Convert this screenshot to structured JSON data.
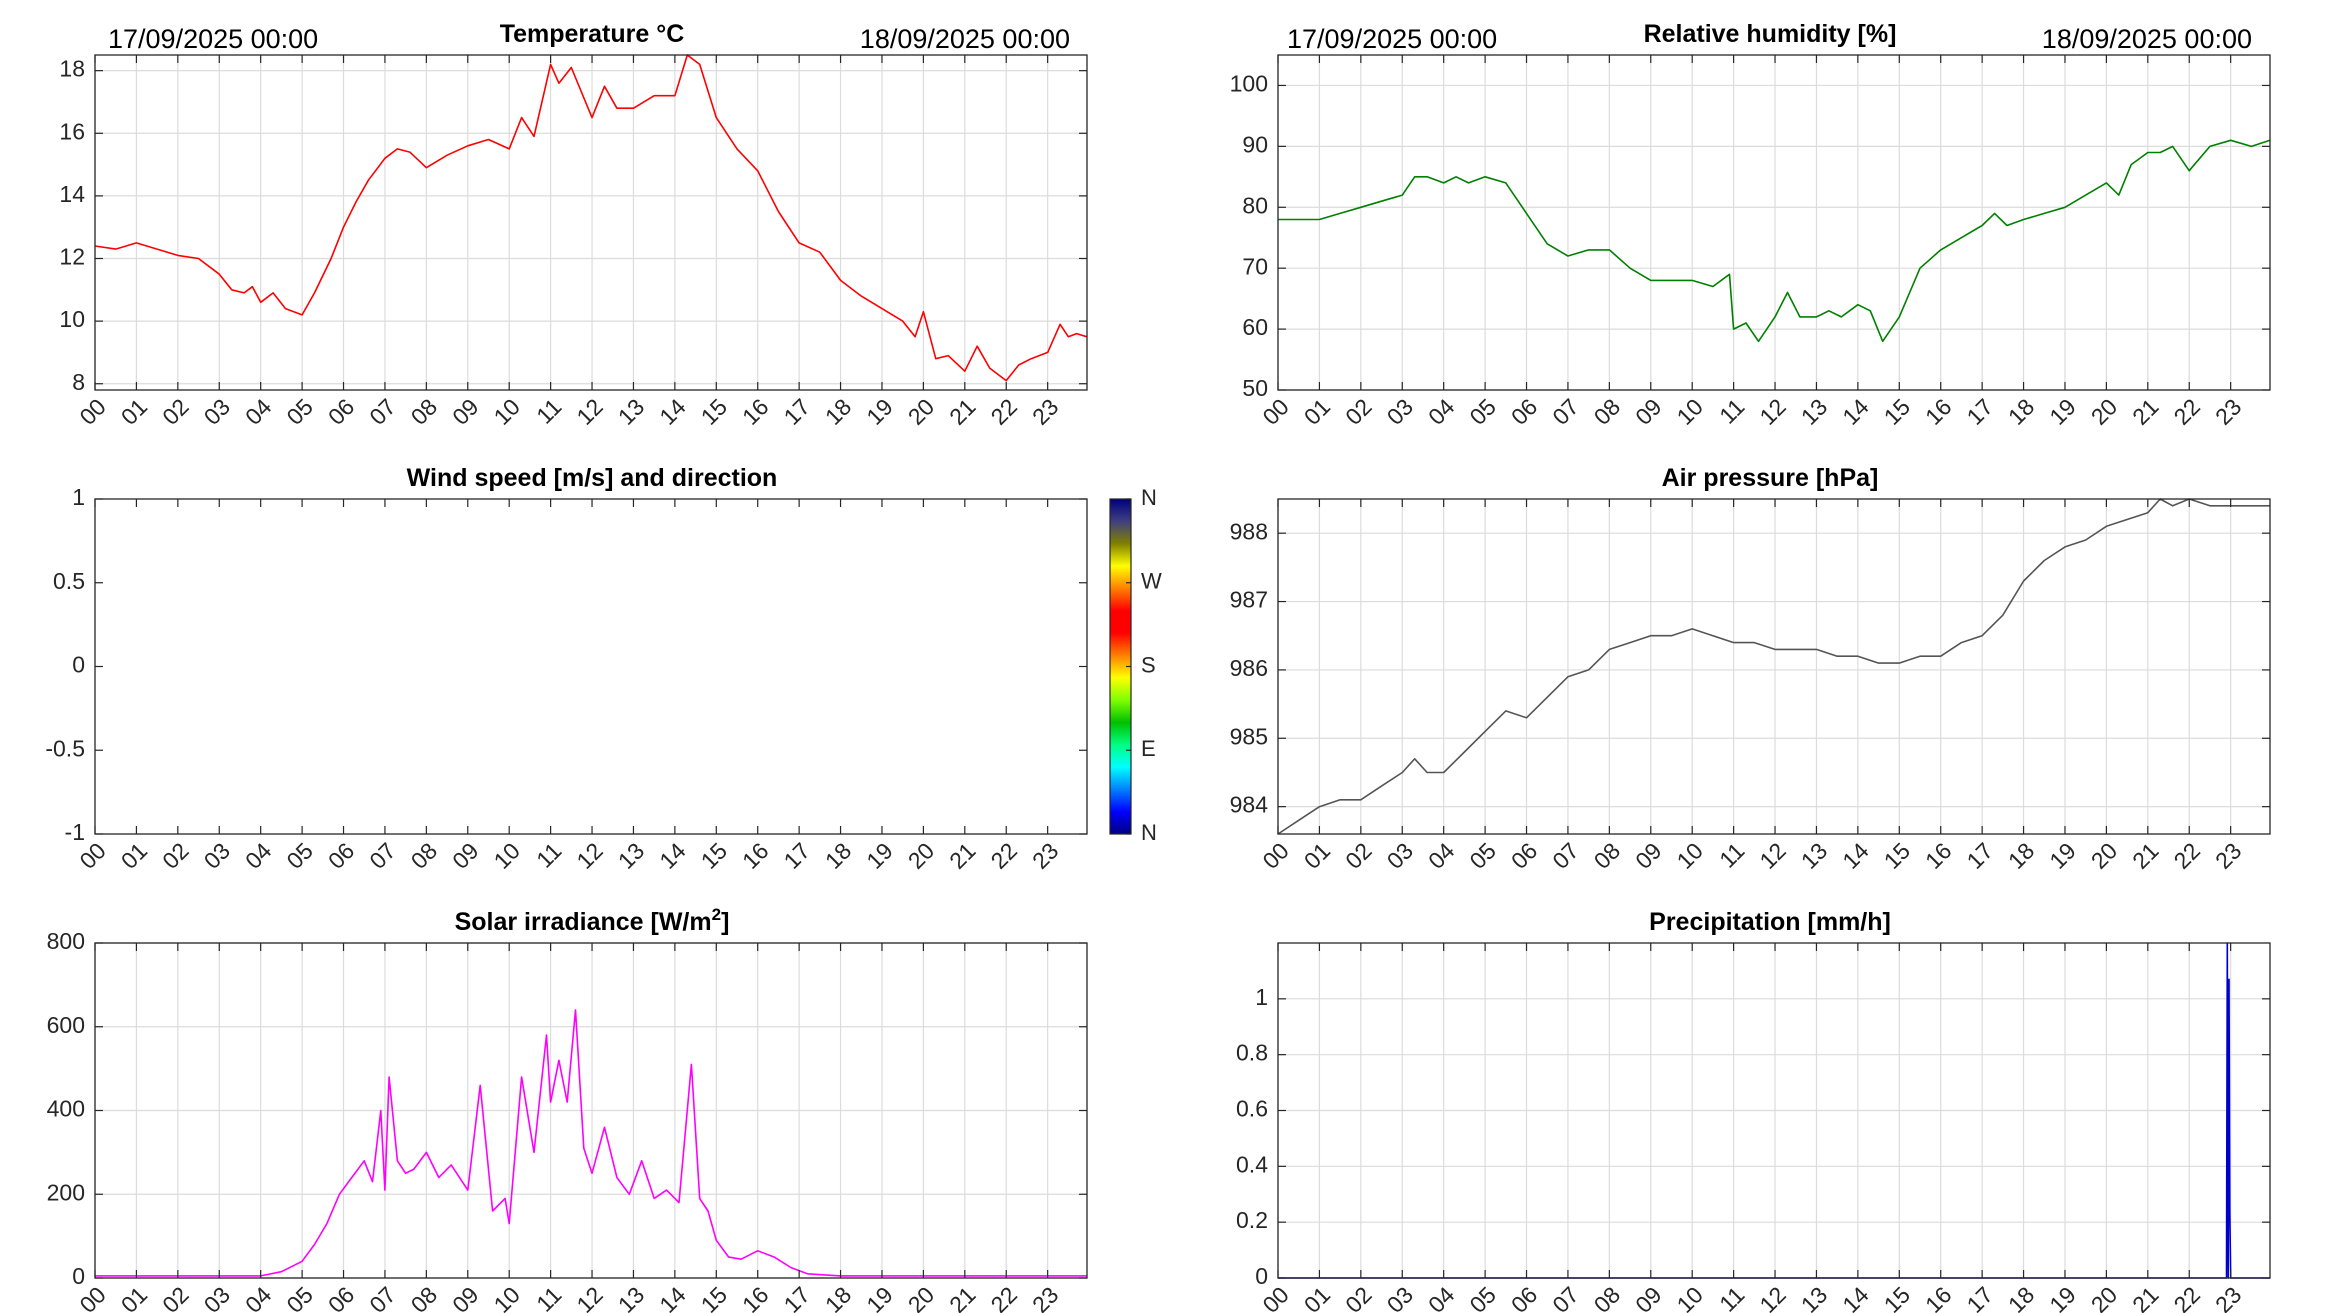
{
  "chart_data": [
    {
      "id": "temperature",
      "type": "line",
      "title": "Temperature °C",
      "date_left": "17/09/2025 00:00",
      "date_right": "18/09/2025 00:00",
      "color": "#ff0000",
      "ylim": [
        7.8,
        18.5
      ],
      "yticks": [
        "8",
        "10",
        "12",
        "14",
        "16",
        "18"
      ],
      "xticks": [
        "00",
        "01",
        "02",
        "03",
        "04",
        "05",
        "06",
        "07",
        "08",
        "09",
        "10",
        "11",
        "12",
        "13",
        "14",
        "15",
        "16",
        "17",
        "18",
        "19",
        "20",
        "21",
        "22",
        "23"
      ],
      "xlim": [
        0,
        23.95
      ],
      "grid": true,
      "x": [
        0,
        0.5,
        1,
        1.5,
        2,
        2.5,
        3,
        3.3,
        3.6,
        3.8,
        4,
        4.3,
        4.6,
        5,
        5.3,
        5.7,
        6,
        6.3,
        6.6,
        7,
        7.3,
        7.6,
        8,
        8.5,
        9,
        9.5,
        10,
        10.3,
        10.6,
        11,
        11.2,
        11.5,
        12,
        12.3,
        12.6,
        13,
        13.5,
        14,
        14.3,
        14.6,
        15,
        15.5,
        16,
        16.5,
        17,
        17.5,
        18,
        18.5,
        19,
        19.5,
        19.8,
        20,
        20.3,
        20.6,
        21,
        21.3,
        21.6,
        22,
        22.3,
        22.6,
        23,
        23.3,
        23.5,
        23.7,
        23.95
      ],
      "y": [
        12.4,
        12.3,
        12.5,
        12.3,
        12.1,
        12.0,
        11.5,
        11.0,
        10.9,
        11.1,
        10.6,
        10.9,
        10.4,
        10.2,
        10.9,
        12.0,
        13.0,
        13.8,
        14.5,
        15.2,
        15.5,
        15.4,
        14.9,
        15.3,
        15.6,
        15.8,
        15.5,
        16.5,
        15.9,
        18.2,
        17.6,
        18.1,
        16.5,
        17.5,
        16.8,
        16.8,
        17.2,
        17.2,
        18.5,
        18.2,
        16.5,
        15.5,
        14.8,
        13.5,
        12.5,
        12.2,
        11.3,
        10.8,
        10.4,
        10.0,
        9.5,
        10.3,
        8.8,
        8.9,
        8.4,
        9.2,
        8.5,
        8.1,
        8.6,
        8.8,
        9.0,
        9.9,
        9.5,
        9.6,
        9.5
      ]
    },
    {
      "id": "humidity",
      "type": "line",
      "title": "Relative humidity [%]",
      "date_left": "17/09/2025 00:00",
      "date_right": "18/09/2025 00:00",
      "color": "#008000",
      "ylim": [
        50,
        105
      ],
      "yticks": [
        "50",
        "60",
        "70",
        "80",
        "90",
        "100"
      ],
      "xticks": [
        "00",
        "01",
        "02",
        "03",
        "04",
        "05",
        "06",
        "07",
        "08",
        "09",
        "10",
        "11",
        "12",
        "13",
        "14",
        "15",
        "16",
        "17",
        "18",
        "19",
        "20",
        "21",
        "22",
        "23"
      ],
      "xlim": [
        0,
        23.95
      ],
      "grid": true,
      "x": [
        0,
        0.5,
        1,
        1.5,
        2,
        2.5,
        3,
        3.3,
        3.6,
        4,
        4.3,
        4.6,
        5,
        5.5,
        6,
        6.5,
        7,
        7.5,
        8,
        8.5,
        9,
        9.5,
        10,
        10.5,
        10.9,
        11,
        11.3,
        11.6,
        12,
        12.3,
        12.6,
        13,
        13.3,
        13.6,
        14,
        14.3,
        14.6,
        15,
        15.5,
        16,
        16.5,
        17,
        17.3,
        17.6,
        18,
        18.5,
        19,
        19.5,
        20,
        20.3,
        20.6,
        21,
        21.3,
        21.6,
        22,
        22.5,
        23,
        23.5,
        23.95
      ],
      "y": [
        78,
        78,
        78,
        79,
        80,
        81,
        82,
        85,
        85,
        84,
        85,
        84,
        85,
        84,
        79,
        74,
        72,
        73,
        73,
        70,
        68,
        68,
        68,
        67,
        69,
        60,
        61,
        58,
        62,
        66,
        62,
        62,
        63,
        62,
        64,
        63,
        58,
        62,
        70,
        73,
        75,
        77,
        79,
        77,
        78,
        79,
        80,
        82,
        84,
        82,
        87,
        89,
        89,
        90,
        86,
        90,
        91,
        90,
        91
      ]
    },
    {
      "id": "wind",
      "type": "line",
      "title": "Wind speed [m/s] and direction",
      "color": "#000000",
      "ylim": [
        -1,
        1
      ],
      "yticks": [
        "-1",
        "-0.5",
        "0",
        "0.5",
        "1"
      ],
      "xticks": [
        "00",
        "01",
        "02",
        "03",
        "04",
        "05",
        "06",
        "07",
        "08",
        "09",
        "10",
        "11",
        "12",
        "13",
        "14",
        "15",
        "16",
        "17",
        "18",
        "19",
        "20",
        "21",
        "22",
        "23"
      ],
      "xlim": [
        0,
        23.95
      ],
      "grid": false,
      "x": [],
      "y": [],
      "colorbar": {
        "labels": [
          "N",
          "W",
          "S",
          "E",
          "N"
        ],
        "colors": [
          "#000080",
          "#0000ff",
          "#0080ff",
          "#00ffff",
          "#00ff80",
          "#00c000",
          "#80ff00",
          "#ffff00",
          "#ff8000",
          "#ff0000",
          "#ff0000",
          "#ff8000",
          "#ffff00",
          "#808000",
          "#404080",
          "#000080"
        ]
      }
    },
    {
      "id": "pressure",
      "type": "line",
      "title": "Air pressure [hPa]",
      "color": "#555555",
      "ylim": [
        983.6,
        988.5
      ],
      "yticks": [
        "984",
        "985",
        "986",
        "987",
        "988"
      ],
      "xticks": [
        "00",
        "01",
        "02",
        "03",
        "04",
        "05",
        "06",
        "07",
        "08",
        "09",
        "10",
        "11",
        "12",
        "13",
        "14",
        "15",
        "16",
        "17",
        "18",
        "19",
        "20",
        "21",
        "22",
        "23"
      ],
      "xlim": [
        0,
        23.95
      ],
      "grid": true,
      "x": [
        0,
        0.5,
        1,
        1.5,
        2,
        2.5,
        3,
        3.3,
        3.6,
        4,
        4.5,
        5,
        5.5,
        6,
        6.5,
        7,
        7.5,
        8,
        8.5,
        9,
        9.5,
        10,
        10.5,
        11,
        11.5,
        12,
        12.5,
        13,
        13.5,
        14,
        14.5,
        15,
        15.5,
        16,
        16.5,
        17,
        17.5,
        18,
        18.5,
        19,
        19.5,
        20,
        20.5,
        21,
        21.3,
        21.6,
        22,
        22.5,
        23,
        23.5,
        23.95
      ],
      "y": [
        983.6,
        983.8,
        984.0,
        984.1,
        984.1,
        984.3,
        984.5,
        984.7,
        984.5,
        984.5,
        984.8,
        985.1,
        985.4,
        985.3,
        985.6,
        985.9,
        986.0,
        986.3,
        986.4,
        986.5,
        986.5,
        986.6,
        986.5,
        986.4,
        986.4,
        986.3,
        986.3,
        986.3,
        986.2,
        986.2,
        986.1,
        986.1,
        986.2,
        986.2,
        986.4,
        986.5,
        986.8,
        987.3,
        987.6,
        987.8,
        987.9,
        988.1,
        988.2,
        988.3,
        988.5,
        988.4,
        988.5,
        988.4,
        988.4,
        988.4,
        988.4
      ]
    },
    {
      "id": "solar",
      "type": "line",
      "title": "Solar irradiance [W/m",
      "title_sup": "2",
      "title_end": "]",
      "color": "#ff00ff",
      "ylim": [
        0,
        800
      ],
      "yticks": [
        "0",
        "200",
        "400",
        "600",
        "800"
      ],
      "xticks": [
        "00",
        "01",
        "02",
        "03",
        "04",
        "05",
        "06",
        "07",
        "08",
        "09",
        "10",
        "11",
        "12",
        "13",
        "14",
        "15",
        "16",
        "17",
        "18",
        "19",
        "20",
        "21",
        "22",
        "23"
      ],
      "xlim": [
        0,
        23.95
      ],
      "grid": true,
      "x": [
        0,
        1,
        2,
        3,
        4,
        4.5,
        5,
        5.3,
        5.6,
        5.9,
        6.2,
        6.5,
        6.7,
        6.9,
        7.0,
        7.1,
        7.3,
        7.5,
        7.7,
        8.0,
        8.3,
        8.6,
        9.0,
        9.3,
        9.6,
        9.9,
        10.0,
        10.3,
        10.6,
        10.9,
        11.0,
        11.2,
        11.4,
        11.6,
        11.8,
        12.0,
        12.3,
        12.6,
        12.9,
        13.2,
        13.5,
        13.8,
        14.1,
        14.4,
        14.6,
        14.8,
        15.0,
        15.3,
        15.6,
        16.0,
        16.4,
        16.8,
        17.2,
        18,
        19,
        20,
        21,
        22,
        23,
        23.95
      ],
      "y": [
        5,
        5,
        5,
        5,
        5,
        15,
        40,
        80,
        130,
        200,
        240,
        280,
        230,
        400,
        210,
        480,
        280,
        250,
        260,
        300,
        240,
        270,
        210,
        460,
        160,
        190,
        130,
        480,
        300,
        580,
        420,
        520,
        420,
        640,
        310,
        250,
        360,
        240,
        200,
        280,
        190,
        210,
        180,
        510,
        190,
        160,
        90,
        50,
        45,
        65,
        50,
        25,
        10,
        5,
        5,
        5,
        5,
        5,
        5,
        5
      ]
    },
    {
      "id": "precip",
      "type": "line",
      "title": "Precipitation [mm/h]",
      "color": "#0000cd",
      "ylim": [
        0,
        1.2
      ],
      "yticks": [
        "0",
        "0.2",
        "0.4",
        "0.6",
        "0.8",
        "1"
      ],
      "xticks": [
        "00",
        "01",
        "02",
        "03",
        "04",
        "05",
        "06",
        "07",
        "08",
        "09",
        "10",
        "11",
        "12",
        "13",
        "14",
        "15",
        "16",
        "17",
        "18",
        "19",
        "20",
        "21",
        "22",
        "23"
      ],
      "xlim": [
        0,
        23.95
      ],
      "grid": true,
      "x": [
        0,
        22.9,
        22.92,
        22.94,
        22.96,
        22.98,
        23.0,
        23.02,
        23.04,
        23.95
      ],
      "y": [
        0,
        0,
        1.2,
        0,
        1.07,
        0.24,
        0,
        0,
        0,
        0
      ]
    }
  ]
}
